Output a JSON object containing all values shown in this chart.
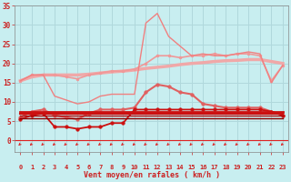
{
  "xlabel": "Vent moyen/en rafales ( km/h )",
  "bg_color": "#c8eef0",
  "grid_color": "#b0d8dc",
  "xlim": [
    -0.5,
    23.5
  ],
  "ylim": [
    0,
    35
  ],
  "yticks": [
    0,
    5,
    10,
    15,
    20,
    25,
    30,
    35
  ],
  "xticks": [
    0,
    1,
    2,
    3,
    4,
    5,
    6,
    7,
    8,
    9,
    10,
    11,
    12,
    13,
    14,
    15,
    16,
    17,
    18,
    19,
    20,
    21,
    22,
    23
  ],
  "series": [
    {
      "x": [
        0,
        1,
        2,
        3,
        4,
        5,
        6,
        7,
        8,
        9,
        10,
        11,
        12,
        13,
        14,
        15,
        16,
        17,
        18,
        19,
        20,
        21,
        22,
        23
      ],
      "y": [
        15.5,
        16.5,
        17.0,
        17.0,
        17.0,
        17.0,
        17.2,
        17.5,
        17.8,
        18.0,
        18.3,
        18.7,
        19.0,
        19.3,
        19.7,
        20.0,
        20.2,
        20.5,
        20.7,
        20.8,
        21.0,
        21.0,
        20.5,
        20.0
      ],
      "color": "#f0a8a8",
      "lw": 2.5,
      "marker": null,
      "ms": 0,
      "alpha": 1.0
    },
    {
      "x": [
        0,
        1,
        2,
        3,
        4,
        5,
        6,
        7,
        8,
        9,
        10,
        11,
        12,
        13,
        14,
        15,
        16,
        17,
        18,
        19,
        20,
        21,
        22,
        23
      ],
      "y": [
        15.5,
        17.0,
        17.0,
        17.0,
        16.5,
        16.0,
        17.0,
        17.5,
        18.0,
        18.0,
        18.5,
        20.0,
        22.0,
        22.0,
        21.5,
        22.0,
        22.0,
        22.5,
        22.0,
        22.5,
        22.5,
        22.0,
        15.5,
        19.5
      ],
      "color": "#f09898",
      "lw": 1.2,
      "marker": "o",
      "ms": 2.0,
      "alpha": 1.0
    },
    {
      "x": [
        0,
        1,
        2,
        3,
        4,
        5,
        6,
        7,
        8,
        9,
        10,
        11,
        12,
        13,
        14,
        15,
        16,
        17,
        18,
        19,
        20,
        21,
        22,
        23
      ],
      "y": [
        15.5,
        17.0,
        17.0,
        11.5,
        10.5,
        9.5,
        10.0,
        11.5,
        12.0,
        12.0,
        12.0,
        30.5,
        33.0,
        27.0,
        24.5,
        22.0,
        22.5,
        22.0,
        22.0,
        22.5,
        23.0,
        22.5,
        15.0,
        19.5
      ],
      "color": "#f08080",
      "lw": 1.0,
      "marker": null,
      "ms": 0,
      "alpha": 1.0
    },
    {
      "x": [
        0,
        1,
        2,
        3,
        4,
        5,
        6,
        7,
        8,
        9,
        10,
        11,
        12,
        13,
        14,
        15,
        16,
        17,
        18,
        19,
        20,
        21,
        22,
        23
      ],
      "y": [
        6.0,
        7.5,
        8.0,
        6.5,
        6.0,
        5.5,
        7.0,
        8.0,
        8.0,
        8.0,
        8.5,
        12.5,
        14.5,
        14.0,
        12.5,
        12.0,
        9.5,
        9.0,
        8.5,
        8.5,
        8.5,
        8.5,
        7.5,
        6.5
      ],
      "color": "#e06060",
      "lw": 1.5,
      "marker": "o",
      "ms": 2.5,
      "alpha": 1.0
    },
    {
      "x": [
        0,
        1,
        2,
        3,
        4,
        5,
        6,
        7,
        8,
        9,
        10,
        11,
        12,
        13,
        14,
        15,
        16,
        17,
        18,
        19,
        20,
        21,
        22,
        23
      ],
      "y": [
        7.5,
        7.5,
        7.5,
        7.5,
        7.5,
        7.5,
        7.5,
        7.5,
        7.5,
        7.5,
        7.5,
        7.5,
        7.5,
        7.5,
        7.5,
        7.5,
        7.5,
        7.5,
        7.5,
        7.5,
        7.5,
        7.5,
        7.5,
        7.5
      ],
      "color": "#cc1010",
      "lw": 2.0,
      "marker": null,
      "ms": 0,
      "alpha": 1.0
    },
    {
      "x": [
        0,
        1,
        2,
        3,
        4,
        5,
        6,
        7,
        8,
        9,
        10,
        11,
        12,
        13,
        14,
        15,
        16,
        17,
        18,
        19,
        20,
        21,
        22,
        23
      ],
      "y": [
        7.0,
        7.0,
        7.0,
        7.0,
        7.0,
        7.0,
        7.0,
        7.0,
        7.0,
        7.0,
        7.0,
        7.0,
        7.0,
        7.0,
        7.0,
        7.0,
        7.0,
        7.0,
        7.0,
        7.0,
        7.0,
        7.0,
        7.0,
        7.0
      ],
      "color": "#cc1010",
      "lw": 1.5,
      "marker": null,
      "ms": 0,
      "alpha": 1.0
    },
    {
      "x": [
        0,
        1,
        2,
        3,
        4,
        5,
        6,
        7,
        8,
        9,
        10,
        11,
        12,
        13,
        14,
        15,
        16,
        17,
        18,
        19,
        20,
        21,
        22,
        23
      ],
      "y": [
        5.5,
        6.5,
        7.0,
        3.5,
        3.5,
        3.0,
        3.5,
        3.5,
        4.5,
        4.5,
        8.0,
        8.0,
        8.0,
        8.0,
        8.0,
        8.0,
        8.0,
        8.0,
        8.0,
        8.0,
        8.0,
        8.0,
        7.5,
        6.5
      ],
      "color": "#cc1010",
      "lw": 1.3,
      "marker": "o",
      "ms": 2.5,
      "alpha": 1.0
    },
    {
      "x": [
        0,
        1,
        2,
        3,
        4,
        5,
        6,
        7,
        8,
        9,
        10,
        11,
        12,
        13,
        14,
        15,
        16,
        17,
        18,
        19,
        20,
        21,
        22,
        23
      ],
      "y": [
        6.5,
        6.5,
        6.5,
        6.5,
        6.5,
        6.5,
        6.5,
        6.5,
        6.5,
        6.5,
        6.5,
        6.5,
        6.5,
        6.5,
        6.5,
        6.5,
        6.5,
        6.5,
        6.5,
        6.5,
        6.5,
        6.5,
        6.5,
        6.5
      ],
      "color": "#aa0808",
      "lw": 1.0,
      "marker": null,
      "ms": 0,
      "alpha": 1.0
    },
    {
      "x": [
        0,
        1,
        2,
        3,
        4,
        5,
        6,
        7,
        8,
        9,
        10,
        11,
        12,
        13,
        14,
        15,
        16,
        17,
        18,
        19,
        20,
        21,
        22,
        23
      ],
      "y": [
        5.8,
        5.8,
        5.8,
        5.8,
        5.8,
        5.8,
        5.8,
        5.8,
        5.8,
        5.8,
        5.8,
        5.8,
        5.8,
        5.8,
        5.8,
        5.8,
        5.8,
        5.8,
        5.8,
        5.8,
        5.8,
        5.8,
        5.8,
        5.8
      ],
      "color": "#880000",
      "lw": 1.0,
      "marker": null,
      "ms": 0,
      "alpha": 1.0
    }
  ],
  "arrow_color": "#dd2020",
  "tick_color": "#cc2020",
  "label_color": "#cc2020",
  "spine_color": "#888888"
}
